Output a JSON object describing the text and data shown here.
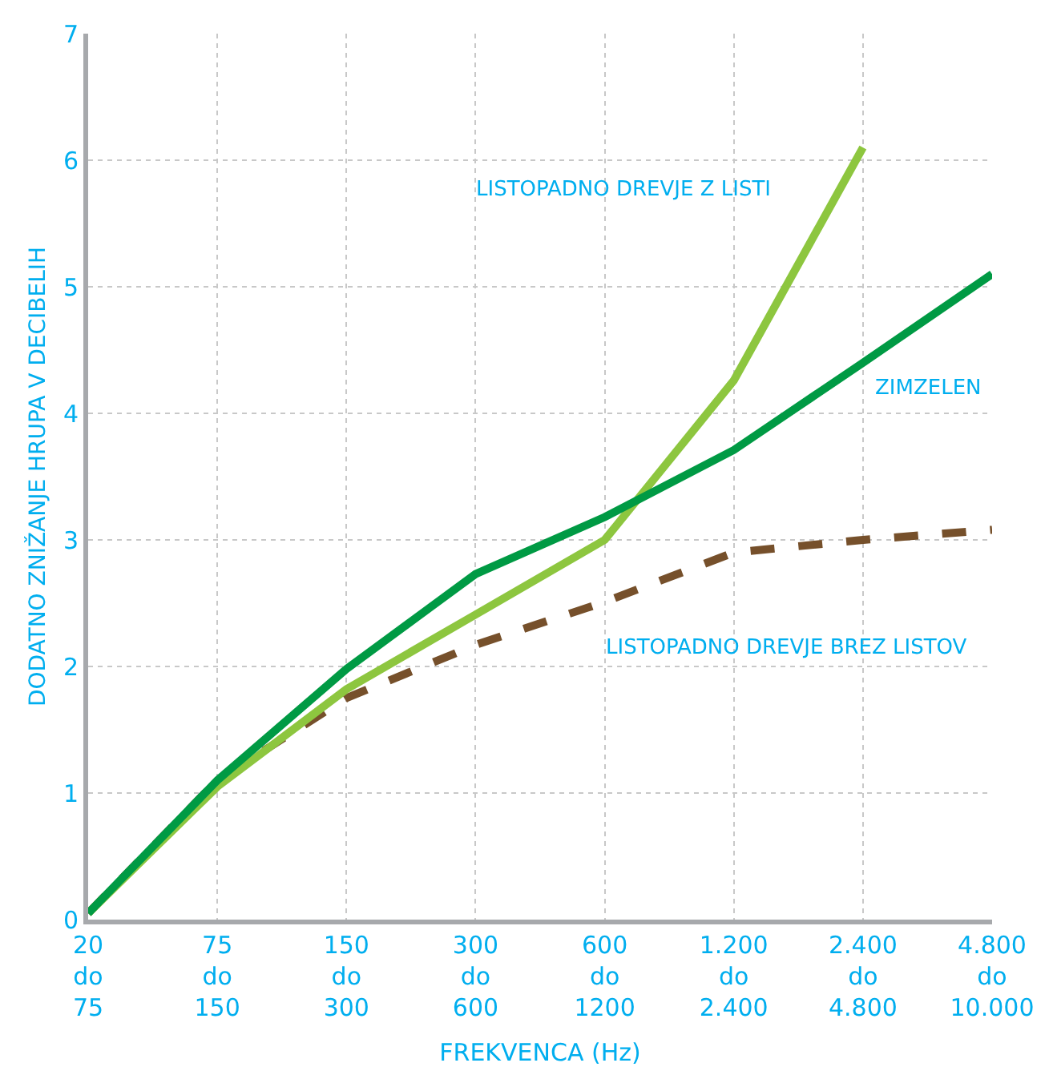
{
  "chart_data": {
    "type": "line",
    "xlabel": "FREKVENCA (Hz)",
    "ylabel": "DODATNO ZNIŽANJE HRUPA V DECIBELIH",
    "categories": [
      "20\ndo\n75",
      "75\ndo\n150",
      "150\ndo\n300",
      "300\ndo\n600",
      "600\ndo\n1200",
      "1.200\ndo\n2.400",
      "2.400\ndo\n4.800",
      "4.800\ndo\n10.000"
    ],
    "ylim": [
      0,
      7
    ],
    "yticks": [
      0,
      1,
      2,
      3,
      4,
      5,
      6,
      7
    ],
    "grid": true,
    "marker": "none",
    "series": [
      {
        "color": "#76502b",
        "line_style": "dashed",
        "values": [
          0.05,
          1.1,
          1.75,
          2.17,
          2.51,
          2.9,
          3.0,
          3.08
        ]
      },
      {
        "color": "#8dc63f",
        "line_style": "solid",
        "values": [
          0.05,
          1.05,
          1.82,
          2.41,
          3.0,
          4.26,
          6.1,
          null
        ]
      },
      {
        "color": "#009a44",
        "line_style": "solid",
        "values": [
          0.05,
          1.1,
          1.98,
          2.73,
          3.18,
          3.71,
          4.4,
          5.1
        ]
      }
    ],
    "annotations": [
      "LISTOPADNO DREVJE Z LISTI",
      "ZIMZELEN",
      "LISTOPADNO DREVJE BREZ LISTOV"
    ]
  }
}
